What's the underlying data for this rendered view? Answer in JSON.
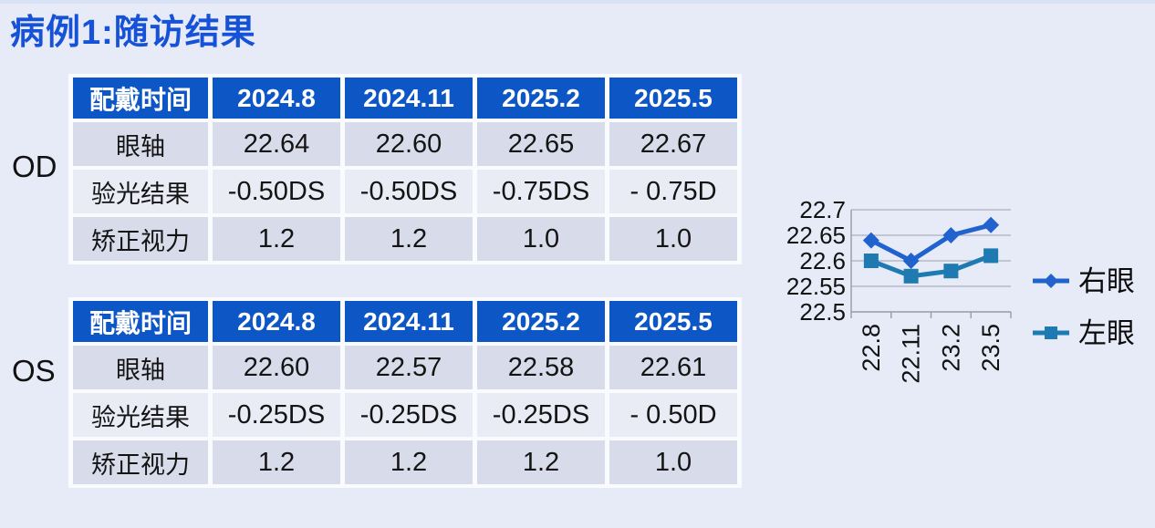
{
  "page": {
    "title": "病例1:随访结果"
  },
  "tables": [
    {
      "eye_label": "OD",
      "header": [
        "配戴时间",
        "2024.8",
        "2024.11",
        "2025.2",
        "2025.5"
      ],
      "rows": [
        {
          "label": "眼轴",
          "values": [
            "22.64",
            "22.60",
            "22.65",
            "22.67"
          ]
        },
        {
          "label": "验光结果",
          "values": [
            "-0.50DS",
            "-0.50DS",
            "-0.75DS",
            "- 0.75D"
          ]
        },
        {
          "label": "矫正视力",
          "values": [
            "1.2",
            "1.2",
            "1.0",
            "1.0"
          ]
        }
      ]
    },
    {
      "eye_label": "OS",
      "header": [
        "配戴时间",
        "2024.8",
        "2024.11",
        "2025.2",
        "2025.5"
      ],
      "rows": [
        {
          "label": "眼轴",
          "values": [
            "22.60",
            "22.57",
            "22.58",
            "22.61"
          ]
        },
        {
          "label": "验光结果",
          "values": [
            "-0.25DS",
            "-0.25DS",
            "-0.25DS",
            "- 0.50D"
          ]
        },
        {
          "label": "矫正视力",
          "values": [
            "1.2",
            "1.2",
            "1.2",
            "1.0"
          ]
        }
      ]
    }
  ],
  "chart_data": {
    "type": "line",
    "categories": [
      "22.8",
      "22.11",
      "23.2",
      "23.5"
    ],
    "series": [
      {
        "name": "右眼",
        "values": [
          22.64,
          22.6,
          22.65,
          22.67
        ],
        "color": "#2063cf",
        "marker": "diamond"
      },
      {
        "name": "左眼",
        "values": [
          22.6,
          22.57,
          22.58,
          22.61
        ],
        "color": "#1e7ab0",
        "marker": "square"
      }
    ],
    "ylim": [
      22.5,
      22.7
    ],
    "yticks": [
      "22.7",
      "22.65",
      "22.6",
      "22.55",
      "22.5"
    ],
    "grid": true,
    "legend_position": "right"
  },
  "colors": {
    "background": "#e7ebf8",
    "title": "#1652d8",
    "header_bg": "#0d56c6",
    "row_a": "#d8dbe9",
    "row_b": "#e9ebf5",
    "table_gap": "#fafbff",
    "grid": "#adb1bb",
    "axis": "#9aa0a8",
    "text": "#121212"
  }
}
